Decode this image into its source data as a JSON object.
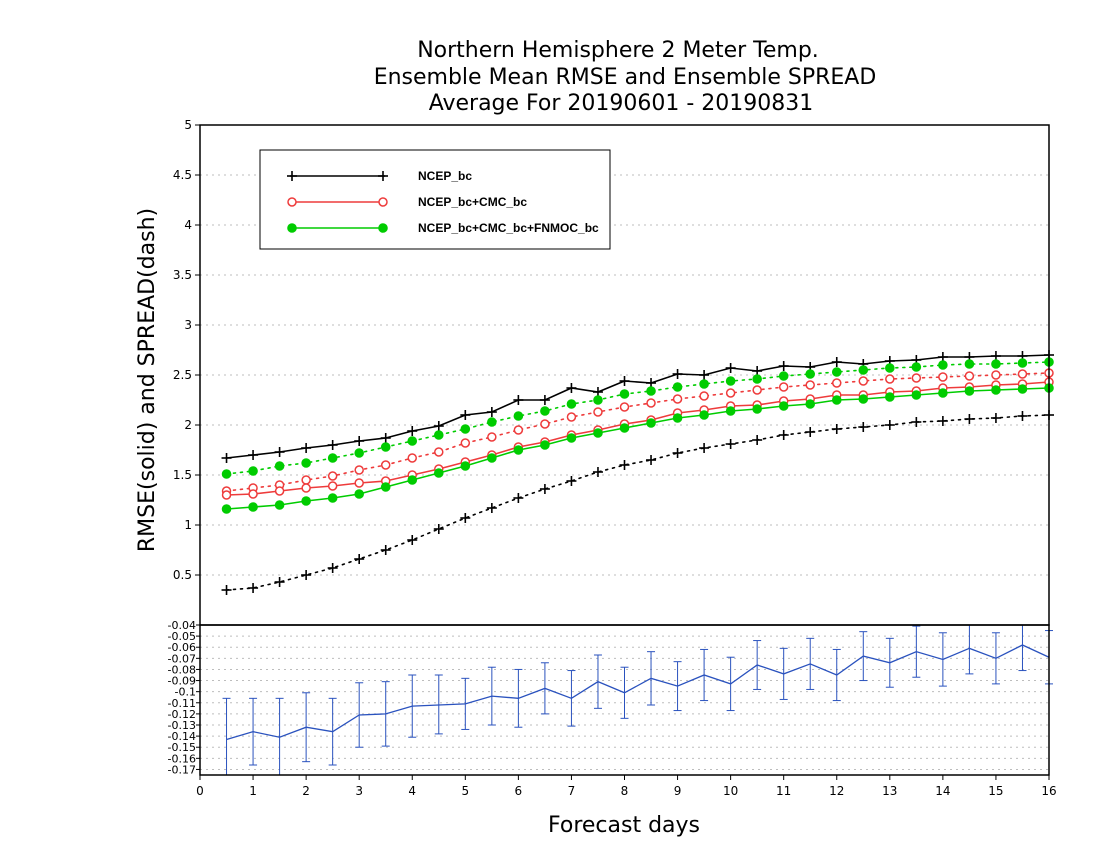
{
  "chart_data": {
    "type": "line",
    "title": [
      "Northern Hemisphere 2 Meter Temp.",
      "Ensemble Mean RMSE and Ensemble SPREAD",
      "Average For 20190601 - 20190831"
    ],
    "xlabel": "Forecast days",
    "ylabel": "RMSE(solid) and SPREAD(dash)",
    "xlim": [
      0,
      16
    ],
    "x_ticks": [
      "0",
      "1",
      "2",
      "3",
      "4",
      "5",
      "6",
      "7",
      "8",
      "9",
      "10",
      "11",
      "12",
      "13",
      "14",
      "15",
      "16"
    ],
    "ylim": [
      0,
      5
    ],
    "y_ticks": [
      "0.5",
      "1",
      "1.5",
      "2",
      "2.5",
      "3",
      "3.5",
      "4",
      "4.5",
      "5"
    ],
    "grid": true,
    "legend_position": "top-left",
    "x": [
      0.5,
      1,
      1.5,
      2,
      2.5,
      3,
      3.5,
      4,
      4.5,
      5,
      5.5,
      6,
      6.5,
      7,
      7.5,
      8,
      8.5,
      9,
      9.5,
      10,
      10.5,
      11,
      11.5,
      12,
      12.5,
      13,
      13.5,
      14,
      14.5,
      15,
      15.5,
      16
    ],
    "series": [
      {
        "name": "NCEP_bc",
        "color": "#000000",
        "marker": "plus",
        "rmse": [
          1.67,
          1.7,
          1.73,
          1.77,
          1.8,
          1.84,
          1.87,
          1.94,
          1.99,
          2.1,
          2.13,
          2.25,
          2.25,
          2.37,
          2.33,
          2.44,
          2.42,
          2.51,
          2.5,
          2.57,
          2.54,
          2.59,
          2.58,
          2.63,
          2.61,
          2.64,
          2.65,
          2.68,
          2.68,
          2.69,
          2.69,
          2.7
        ],
        "spread": [
          0.35,
          0.37,
          0.43,
          0.5,
          0.57,
          0.66,
          0.75,
          0.85,
          0.96,
          1.07,
          1.17,
          1.27,
          1.36,
          1.44,
          1.53,
          1.6,
          1.65,
          1.72,
          1.77,
          1.81,
          1.85,
          1.9,
          1.93,
          1.96,
          1.98,
          2.0,
          2.03,
          2.04,
          2.06,
          2.07,
          2.09,
          2.1
        ]
      },
      {
        "name": "NCEP_bc+CMC_bc",
        "color": "#ee3b3b",
        "marker": "circle-open",
        "rmse": [
          1.3,
          1.31,
          1.34,
          1.37,
          1.39,
          1.42,
          1.44,
          1.5,
          1.56,
          1.63,
          1.7,
          1.78,
          1.83,
          1.9,
          1.95,
          2.01,
          2.05,
          2.12,
          2.15,
          2.19,
          2.2,
          2.24,
          2.26,
          2.3,
          2.3,
          2.33,
          2.34,
          2.37,
          2.38,
          2.4,
          2.41,
          2.43
        ],
        "spread": [
          1.34,
          1.37,
          1.4,
          1.45,
          1.49,
          1.55,
          1.6,
          1.67,
          1.73,
          1.82,
          1.88,
          1.95,
          2.01,
          2.08,
          2.13,
          2.18,
          2.22,
          2.26,
          2.29,
          2.32,
          2.35,
          2.38,
          2.4,
          2.42,
          2.44,
          2.46,
          2.47,
          2.48,
          2.49,
          2.5,
          2.51,
          2.52
        ]
      },
      {
        "name": "NCEP_bc+CMC_bc+FNMOC_bc",
        "color": "#00cc00",
        "marker": "circle-filled",
        "rmse": [
          1.16,
          1.18,
          1.2,
          1.24,
          1.27,
          1.31,
          1.38,
          1.45,
          1.52,
          1.59,
          1.67,
          1.75,
          1.8,
          1.87,
          1.92,
          1.97,
          2.02,
          2.07,
          2.1,
          2.14,
          2.16,
          2.19,
          2.21,
          2.25,
          2.26,
          2.28,
          2.3,
          2.32,
          2.34,
          2.35,
          2.36,
          2.37
        ],
        "spread": [
          1.51,
          1.54,
          1.59,
          1.62,
          1.67,
          1.72,
          1.78,
          1.84,
          1.9,
          1.96,
          2.03,
          2.09,
          2.14,
          2.21,
          2.25,
          2.31,
          2.34,
          2.38,
          2.41,
          2.44,
          2.46,
          2.49,
          2.51,
          2.53,
          2.55,
          2.57,
          2.58,
          2.6,
          2.61,
          2.61,
          2.62,
          2.63
        ]
      }
    ],
    "difference_panel": {
      "color": "#2a52be",
      "ylim": [
        -0.175,
        -0.04
      ],
      "y_ticks": [
        "-0.04",
        "-0.05",
        "-0.06",
        "-0.07",
        "-0.08",
        "-0.09",
        "-0.1",
        "-0.11",
        "-0.12",
        "-0.13",
        "-0.14",
        "-0.15",
        "-0.16",
        "-0.17"
      ],
      "values": [
        -0.143,
        -0.136,
        -0.141,
        -0.132,
        -0.136,
        -0.121,
        -0.12,
        -0.113,
        -0.112,
        -0.111,
        -0.104,
        -0.106,
        -0.097,
        -0.106,
        -0.091,
        -0.101,
        -0.088,
        -0.095,
        -0.085,
        -0.093,
        -0.076,
        -0.084,
        -0.075,
        -0.085,
        -0.068,
        -0.074,
        -0.064,
        -0.071,
        -0.061,
        -0.07,
        -0.058,
        -0.069
      ],
      "error_low": [
        -0.18,
        -0.166,
        -0.178,
        -0.163,
        -0.166,
        -0.15,
        -0.149,
        -0.141,
        -0.138,
        -0.134,
        -0.13,
        -0.132,
        -0.12,
        -0.131,
        -0.115,
        -0.124,
        -0.112,
        -0.117,
        -0.108,
        -0.117,
        -0.098,
        -0.107,
        -0.098,
        -0.108,
        -0.09,
        -0.096,
        -0.087,
        -0.095,
        -0.084,
        -0.093,
        -0.081,
        -0.093
      ],
      "error_high": [
        -0.106,
        -0.106,
        -0.106,
        -0.101,
        -0.106,
        -0.092,
        -0.091,
        -0.085,
        -0.085,
        -0.088,
        -0.078,
        -0.08,
        -0.074,
        -0.081,
        -0.067,
        -0.078,
        -0.064,
        -0.073,
        -0.062,
        -0.069,
        -0.054,
        -0.061,
        -0.052,
        -0.062,
        -0.046,
        -0.052,
        -0.041,
        -0.047,
        -0.038,
        -0.047,
        -0.035,
        -0.045
      ]
    }
  }
}
